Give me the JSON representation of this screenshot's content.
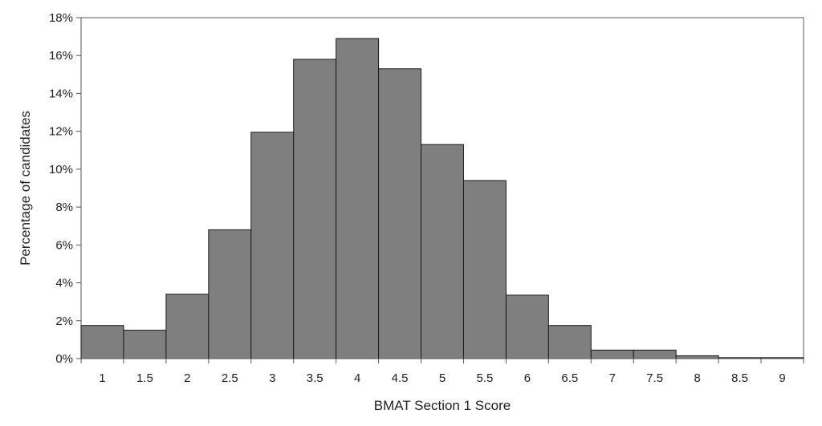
{
  "chart_data": {
    "type": "bar",
    "categories": [
      "1",
      "1.5",
      "2",
      "2.5",
      "3",
      "3.5",
      "4",
      "4.5",
      "5",
      "5.5",
      "6",
      "6.5",
      "7",
      "7.5",
      "8",
      "8.5",
      "9"
    ],
    "values": [
      1.75,
      1.5,
      3.4,
      6.8,
      11.95,
      15.8,
      16.9,
      15.3,
      11.3,
      9.4,
      3.35,
      1.75,
      0.45,
      0.45,
      0.15,
      0.05,
      0.05
    ],
    "xlabel": "BMAT Section 1 Score",
    "ylabel": "Percentage of candidates",
    "ylim": [
      0,
      18
    ],
    "yticks": [
      0,
      2,
      4,
      6,
      8,
      10,
      12,
      14,
      16,
      18
    ],
    "ytick_labels": [
      "0%",
      "2%",
      "4%",
      "6%",
      "8%",
      "10%",
      "12%",
      "14%",
      "16%",
      "18%"
    ],
    "grid": false,
    "legend": "none",
    "colors": {
      "bar_fill": "#7f7f7f",
      "bar_stroke": "#1a1a1a",
      "axis": "#555555",
      "frame": "#555555"
    }
  }
}
